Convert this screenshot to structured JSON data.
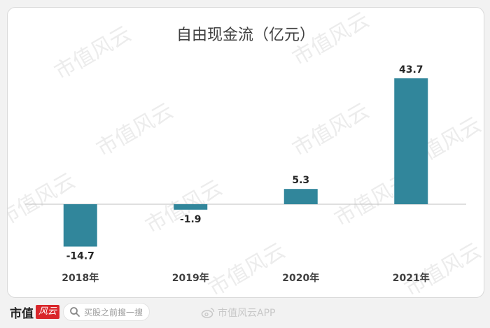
{
  "chart_data": {
    "type": "bar",
    "title": "自由现金流（亿元）",
    "categories": [
      "2018年",
      "2019年",
      "2020年",
      "2021年"
    ],
    "values": [
      -14.7,
      -1.9,
      5.3,
      43.7
    ],
    "value_labels": [
      "-14.7",
      "-1.9",
      "5.3",
      "43.7"
    ],
    "bar_color": "#31869b",
    "grid": false,
    "legend": "none"
  },
  "watermark": {
    "text": "市值风云"
  },
  "footer": {
    "brand_name": "市值",
    "brand_tag": "风云",
    "search_placeholder": "买股之前搜一搜",
    "weibo_credit": "市值风云APP"
  }
}
